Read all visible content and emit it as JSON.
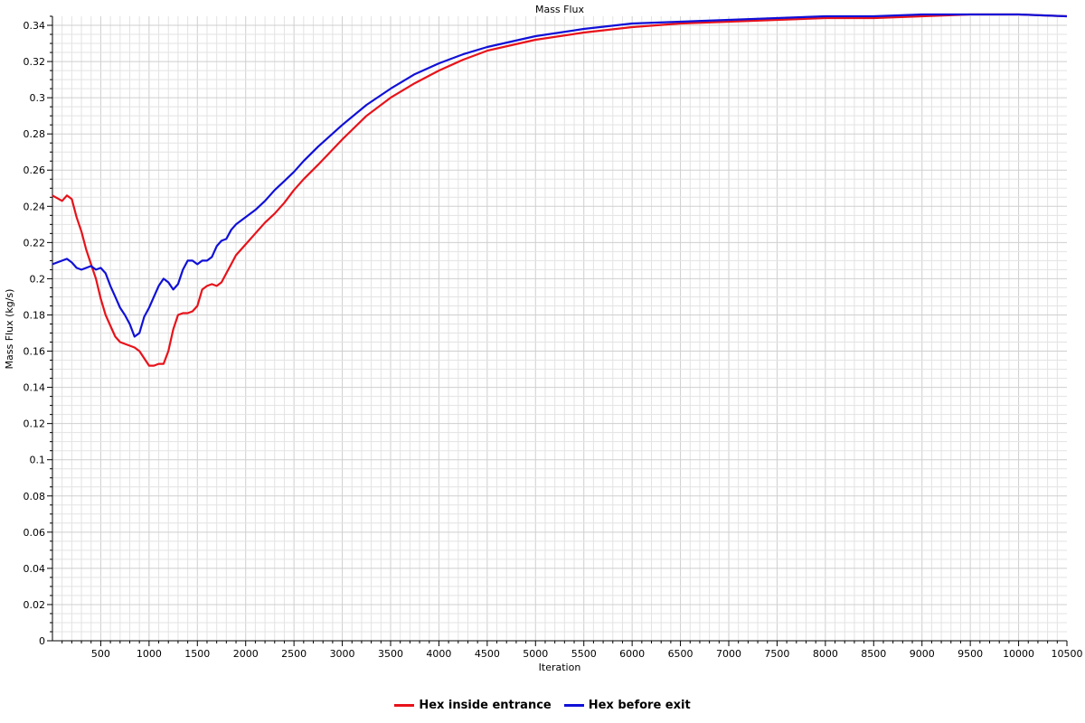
{
  "chart_data": {
    "type": "line",
    "title": "Mass Flux",
    "xlabel": "Iteration",
    "ylabel": "Mass Flux (kg/s)",
    "xlim": [
      0,
      10500
    ],
    "ylim": [
      0,
      0.345
    ],
    "xticks": [
      500,
      1000,
      1500,
      2000,
      2500,
      3000,
      3500,
      4000,
      4500,
      5000,
      5500,
      6000,
      6500,
      7000,
      7500,
      8000,
      8500,
      9000,
      9500,
      10000,
      10500
    ],
    "xtick_labels": [
      "500",
      "1000",
      "1500",
      "2000",
      "2500",
      "3000",
      "3500",
      "4000",
      "4500",
      "5000",
      "5500",
      "6000",
      "6500",
      "7000",
      "7500",
      "8000",
      "8500",
      "9000",
      "9500",
      "10000",
      "10500"
    ],
    "yticks": [
      0,
      0.02,
      0.04,
      0.06,
      0.08,
      0.1,
      0.12,
      0.14,
      0.16,
      0.18,
      0.2,
      0.22,
      0.24,
      0.26,
      0.28,
      0.3,
      0.32,
      0.34
    ],
    "ytick_labels": [
      "0",
      "0.02",
      "0.04",
      "0.06",
      "0.08",
      "0.1",
      "0.12",
      "0.14",
      "0.16",
      "0.18",
      "0.2",
      "0.22",
      "0.24",
      "0.26",
      "0.28",
      "0.3",
      "0.32",
      "0.34"
    ],
    "grid": true,
    "legend_position": "bottom-center",
    "series": [
      {
        "name": "Hex inside entrance",
        "color": "#e8121a",
        "points": [
          [
            0,
            0.246
          ],
          [
            100,
            0.243
          ],
          [
            150,
            0.246
          ],
          [
            200,
            0.244
          ],
          [
            250,
            0.234
          ],
          [
            300,
            0.226
          ],
          [
            350,
            0.216
          ],
          [
            400,
            0.208
          ],
          [
            450,
            0.2
          ],
          [
            500,
            0.189
          ],
          [
            550,
            0.18
          ],
          [
            600,
            0.174
          ],
          [
            650,
            0.168
          ],
          [
            700,
            0.165
          ],
          [
            750,
            0.164
          ],
          [
            800,
            0.163
          ],
          [
            850,
            0.162
          ],
          [
            900,
            0.16
          ],
          [
            950,
            0.156
          ],
          [
            1000,
            0.152
          ],
          [
            1050,
            0.152
          ],
          [
            1100,
            0.153
          ],
          [
            1150,
            0.153
          ],
          [
            1200,
            0.16
          ],
          [
            1250,
            0.172
          ],
          [
            1300,
            0.18
          ],
          [
            1350,
            0.181
          ],
          [
            1400,
            0.181
          ],
          [
            1450,
            0.182
          ],
          [
            1500,
            0.185
          ],
          [
            1550,
            0.194
          ],
          [
            1600,
            0.196
          ],
          [
            1650,
            0.197
          ],
          [
            1700,
            0.196
          ],
          [
            1750,
            0.198
          ],
          [
            1800,
            0.203
          ],
          [
            1850,
            0.208
          ],
          [
            1900,
            0.213
          ],
          [
            2000,
            0.219
          ],
          [
            2100,
            0.225
          ],
          [
            2200,
            0.231
          ],
          [
            2300,
            0.236
          ],
          [
            2400,
            0.242
          ],
          [
            2500,
            0.249
          ],
          [
            2600,
            0.255
          ],
          [
            2750,
            0.263
          ],
          [
            3000,
            0.277
          ],
          [
            3250,
            0.29
          ],
          [
            3500,
            0.3
          ],
          [
            3750,
            0.308
          ],
          [
            4000,
            0.315
          ],
          [
            4250,
            0.321
          ],
          [
            4500,
            0.326
          ],
          [
            4750,
            0.329
          ],
          [
            5000,
            0.332
          ],
          [
            5500,
            0.336
          ],
          [
            6000,
            0.339
          ],
          [
            6500,
            0.341
          ],
          [
            7000,
            0.342
          ],
          [
            7500,
            0.343
          ],
          [
            8000,
            0.344
          ],
          [
            8500,
            0.344
          ],
          [
            9000,
            0.345
          ],
          [
            9500,
            0.346
          ],
          [
            10000,
            0.346
          ],
          [
            10500,
            0.345
          ]
        ]
      },
      {
        "name": "Hex before exit",
        "color": "#1010d8",
        "points": [
          [
            0,
            0.208
          ],
          [
            50,
            0.209
          ],
          [
            100,
            0.21
          ],
          [
            150,
            0.211
          ],
          [
            200,
            0.209
          ],
          [
            250,
            0.206
          ],
          [
            300,
            0.205
          ],
          [
            350,
            0.206
          ],
          [
            400,
            0.207
          ],
          [
            450,
            0.205
          ],
          [
            500,
            0.206
          ],
          [
            550,
            0.203
          ],
          [
            600,
            0.196
          ],
          [
            650,
            0.19
          ],
          [
            700,
            0.184
          ],
          [
            750,
            0.18
          ],
          [
            800,
            0.175
          ],
          [
            850,
            0.168
          ],
          [
            900,
            0.17
          ],
          [
            950,
            0.179
          ],
          [
            1000,
            0.184
          ],
          [
            1050,
            0.19
          ],
          [
            1100,
            0.196
          ],
          [
            1150,
            0.2
          ],
          [
            1200,
            0.198
          ],
          [
            1250,
            0.194
          ],
          [
            1300,
            0.197
          ],
          [
            1350,
            0.205
          ],
          [
            1400,
            0.21
          ],
          [
            1450,
            0.21
          ],
          [
            1500,
            0.208
          ],
          [
            1550,
            0.21
          ],
          [
            1600,
            0.21
          ],
          [
            1650,
            0.212
          ],
          [
            1700,
            0.218
          ],
          [
            1750,
            0.221
          ],
          [
            1800,
            0.222
          ],
          [
            1850,
            0.227
          ],
          [
            1900,
            0.23
          ],
          [
            2000,
            0.234
          ],
          [
            2100,
            0.238
          ],
          [
            2200,
            0.243
          ],
          [
            2300,
            0.249
          ],
          [
            2400,
            0.254
          ],
          [
            2500,
            0.259
          ],
          [
            2600,
            0.265
          ],
          [
            2750,
            0.273
          ],
          [
            3000,
            0.285
          ],
          [
            3250,
            0.296
          ],
          [
            3500,
            0.305
          ],
          [
            3750,
            0.313
          ],
          [
            4000,
            0.319
          ],
          [
            4250,
            0.324
          ],
          [
            4500,
            0.328
          ],
          [
            4750,
            0.331
          ],
          [
            5000,
            0.334
          ],
          [
            5500,
            0.338
          ],
          [
            6000,
            0.341
          ],
          [
            6500,
            0.342
          ],
          [
            7000,
            0.343
          ],
          [
            7500,
            0.344
          ],
          [
            8000,
            0.345
          ],
          [
            8500,
            0.345
          ],
          [
            9000,
            0.346
          ],
          [
            9500,
            0.346
          ],
          [
            10000,
            0.346
          ],
          [
            10500,
            0.345
          ]
        ]
      }
    ]
  }
}
